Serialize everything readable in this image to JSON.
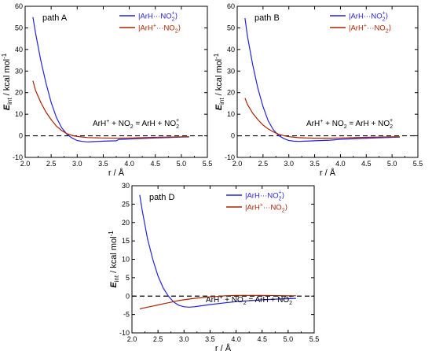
{
  "chart_data": [
    {
      "type": "line",
      "title": "path A",
      "xlabel": "r / Å",
      "ylabel_main": "E",
      "ylabel_sub": "int",
      "ylabel_rest": " / kcal mol",
      "ylabel_sup": "-1",
      "xlim": [
        2.0,
        5.5
      ],
      "ylim": [
        -10,
        60
      ],
      "xticks": [
        "2.0",
        "2.5",
        "3.0",
        "3.5",
        "4.0",
        "4.5",
        "5.0",
        "5.5"
      ],
      "yticks": [
        "-10",
        "0",
        "10",
        "20",
        "30",
        "40",
        "50",
        "60"
      ],
      "reference_line": 0,
      "annotation": {
        "lhs1": "ArH",
        "lhs1_sup": "+",
        "lhs2": " + NO",
        "lhs2_sub": "2",
        "eq": " = ",
        "rhs1": "ArH + NO",
        "rhs1_sub": "2",
        "rhs1_sup": "+"
      },
      "series": [
        {
          "name_parts": {
            "open": "|",
            "a": "ArH",
            "dots": "···",
            "b": "NO",
            "sub": "2",
            "sup": "+",
            "close": "⟩"
          },
          "color": "#2222dd",
          "x": [
            2.15,
            2.2,
            2.3,
            2.4,
            2.5,
            2.6,
            2.7,
            2.8,
            2.9,
            3.0,
            3.1,
            3.2,
            3.3,
            3.5,
            3.75,
            3.8,
            3.9,
            4.0,
            4.25,
            4.5,
            4.75,
            5.0,
            5.15
          ],
          "y": [
            55,
            47.5,
            35,
            24.5,
            15.5,
            8.5,
            3.8,
            0.8,
            -1.0,
            -2.2,
            -2.6,
            -2.8,
            -2.7,
            -2.5,
            -2.3,
            -1.7,
            -1.6,
            -1.5,
            -1.2,
            -1.0,
            -0.8,
            -0.6,
            -0.5
          ]
        },
        {
          "name_parts": {
            "open": "|",
            "a": "ArH",
            "a_sup": "+",
            "dots": "···",
            "b": "NO",
            "sub": "2",
            "close": "⟩"
          },
          "color": "#aa2200",
          "x": [
            2.15,
            2.2,
            2.3,
            2.4,
            2.5,
            2.6,
            2.7,
            2.8,
            2.9,
            3.0,
            3.2,
            3.5,
            3.8,
            4.0,
            4.5,
            5.0,
            5.15
          ],
          "y": [
            25.5,
            21,
            15.5,
            11,
            7.5,
            4.5,
            2.5,
            1.0,
            0.2,
            -0.3,
            -0.8,
            -1.0,
            -1.1,
            -1.0,
            -0.7,
            -0.5,
            -0.4
          ]
        }
      ]
    },
    {
      "type": "line",
      "title": "path B",
      "xlabel": "r / Å",
      "ylabel_main": "E",
      "ylabel_sub": "int",
      "ylabel_rest": " / kcal mol",
      "ylabel_sup": "-1",
      "xlim": [
        2.0,
        5.5
      ],
      "ylim": [
        -10,
        60
      ],
      "xticks": [
        "2.0",
        "2.5",
        "3.0",
        "3.5",
        "4.0",
        "4.5",
        "5.0",
        "5.5"
      ],
      "yticks": [
        "-10",
        "0",
        "10",
        "20",
        "30",
        "40",
        "50",
        "60"
      ],
      "reference_line": 0,
      "annotation": {
        "lhs1": "ArH",
        "lhs1_sup": "+",
        "lhs2": " + NO",
        "lhs2_sub": "2",
        "eq": " = ",
        "rhs1": "ArH + NO",
        "rhs1_sub": "2",
        "rhs1_sup": "+"
      },
      "series": [
        {
          "name_parts": {
            "open": "|",
            "a": "ArH",
            "dots": "···",
            "b": "NO",
            "sub": "2",
            "sup": "+",
            "close": "⟩"
          },
          "color": "#2222dd",
          "x": [
            2.15,
            2.2,
            2.3,
            2.4,
            2.5,
            2.6,
            2.7,
            2.8,
            2.9,
            3.0,
            3.1,
            3.2,
            3.3,
            3.5,
            3.8,
            4.0,
            4.5,
            5.0,
            5.15
          ],
          "y": [
            54.5,
            46,
            33,
            22,
            13.5,
            7.0,
            2.8,
            0.2,
            -1.2,
            -2.2,
            -2.5,
            -2.6,
            -2.5,
            -2.3,
            -2.0,
            -1.6,
            -1.1,
            -0.7,
            -0.6
          ]
        },
        {
          "name_parts": {
            "open": "|",
            "a": "ArH",
            "a_sup": "+",
            "dots": "···",
            "b": "NO",
            "sub": "2",
            "close": "⟩"
          },
          "color": "#aa2200",
          "x": [
            2.15,
            2.2,
            2.3,
            2.4,
            2.5,
            2.6,
            2.7,
            2.8,
            2.9,
            3.0,
            3.2,
            3.5,
            3.8,
            4.0,
            4.5,
            5.0,
            5.15
          ],
          "y": [
            17.5,
            14.5,
            10.5,
            7.5,
            5.0,
            3.2,
            1.8,
            0.8,
            0.1,
            -0.4,
            -0.9,
            -1.1,
            -1.1,
            -1.0,
            -0.7,
            -0.5,
            -0.4
          ]
        }
      ]
    },
    {
      "type": "line",
      "title": "path D",
      "xlabel": "r / Å",
      "ylabel_main": "E",
      "ylabel_sub": "int",
      "ylabel_rest": " / kcal mol",
      "ylabel_sup": "-1",
      "xlim": [
        2.0,
        5.5
      ],
      "ylim": [
        -10,
        30
      ],
      "xticks": [
        "2.0",
        "2.5",
        "3.0",
        "3.5",
        "4.0",
        "4.5",
        "5.0",
        "5.5"
      ],
      "yticks": [
        "-10",
        "-5",
        "0",
        "5",
        "10",
        "15",
        "20",
        "25",
        "30"
      ],
      "reference_line": 0,
      "annotation": {
        "lhs1": "ArH",
        "lhs1_sup": "+",
        "lhs2": " + NO",
        "lhs2_sub": "2",
        "eq": " = ",
        "rhs1": "ArH + NO",
        "rhs1_sub": "2",
        "rhs1_sup": "+"
      },
      "series": [
        {
          "name_parts": {
            "open": "|",
            "a": "ArH",
            "dots": "···",
            "b": "NO",
            "sub": "2",
            "sup": "+",
            "close": "⟩"
          },
          "color": "#2222dd",
          "x": [
            2.15,
            2.2,
            2.3,
            2.4,
            2.5,
            2.6,
            2.7,
            2.8,
            2.9,
            3.0,
            3.1,
            3.2,
            3.3,
            3.5,
            3.8,
            4.0,
            4.5,
            5.0,
            5.15
          ],
          "y": [
            27.5,
            23,
            15.5,
            10,
            5.5,
            2.2,
            0,
            -1.6,
            -2.5,
            -2.9,
            -3.0,
            -2.9,
            -2.7,
            -2.3,
            -1.8,
            -1.5,
            -1.0,
            -0.7,
            -0.6
          ]
        },
        {
          "name_parts": {
            "open": "|",
            "a": "ArH",
            "a_sup": "+",
            "dots": "···",
            "b": "NO",
            "sub": "2",
            "close": "⟩"
          },
          "color": "#aa2200",
          "x": [
            2.15,
            2.2,
            2.3,
            2.4,
            2.5,
            2.6,
            2.7,
            2.8,
            2.9,
            3.0,
            3.2,
            3.5,
            3.8,
            4.0,
            4.5,
            5.0,
            5.15
          ],
          "y": [
            -3.5,
            -3.3,
            -3.0,
            -2.7,
            -2.4,
            -2.1,
            -1.8,
            -1.5,
            -1.2,
            -1.0,
            -0.6,
            -0.2,
            0.1,
            0.2,
            0.2,
            0.1,
            0.1
          ]
        }
      ]
    }
  ]
}
